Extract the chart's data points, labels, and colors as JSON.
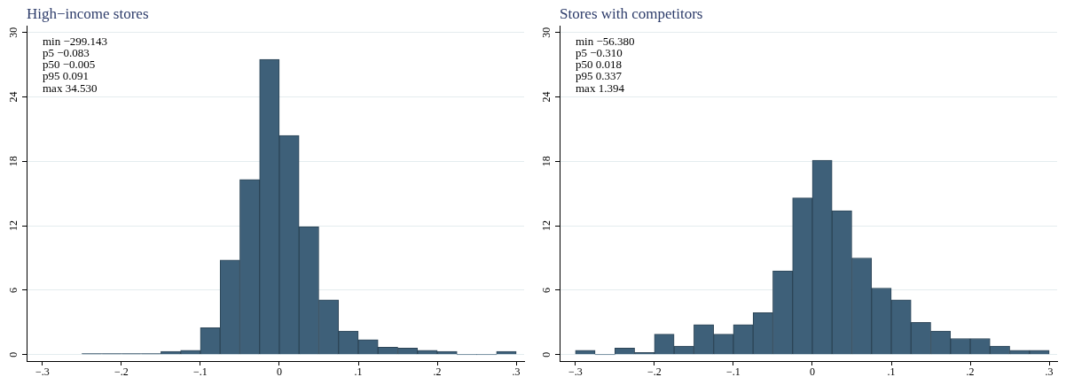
{
  "chart_data": [
    {
      "type": "histogram",
      "title": "High−income stores",
      "bins": [
        -0.25,
        -0.225,
        -0.2,
        -0.175,
        -0.15,
        -0.125,
        -0.1,
        -0.075,
        -0.05,
        -0.025,
        0,
        0.025,
        0.05,
        0.075,
        0.1,
        0.125,
        0.15,
        0.175,
        0.2,
        0.225,
        0.25,
        0.275,
        0.3
      ],
      "values": [
        0.1,
        0.1,
        0.1,
        0.1,
        0.3,
        0.4,
        2.5,
        8.8,
        16.3,
        27.5,
        20.4,
        11.9,
        5.1,
        2.2,
        1.4,
        0.7,
        0.6,
        0.4,
        0.3,
        0,
        0,
        0.3
      ],
      "color": "#3e6079",
      "xlim": [
        -0.32,
        0.31
      ],
      "ylim": [
        -0.6,
        30.6
      ],
      "xticks": [
        {
          "value": -0.3,
          "label": "−.3"
        },
        {
          "value": -0.2,
          "label": "−.2"
        },
        {
          "value": -0.1,
          "label": "−.1"
        },
        0,
        {
          "value": 0.1,
          "label": ".1"
        },
        {
          "value": 0.2,
          "label": ".2"
        },
        {
          "value": 0.3,
          "label": ".3"
        }
      ],
      "yticks": [
        0,
        6,
        12,
        18,
        24,
        30
      ],
      "grid": "y",
      "annotations": [
        "min −299.143",
        "p5 −0.083",
        "p50 −0.005",
        "p95 0.091",
        "max 34.530"
      ]
    },
    {
      "type": "histogram",
      "title": "Stores with competitors",
      "bins": [
        -0.3,
        -0.275,
        -0.25,
        -0.225,
        -0.2,
        -0.175,
        -0.15,
        -0.125,
        -0.1,
        -0.075,
        -0.05,
        -0.025,
        0,
        0.025,
        0.05,
        0.075,
        0.1,
        0.125,
        0.15,
        0.175,
        0.2,
        0.225,
        0.25,
        0.275,
        0.3
      ],
      "values": [
        0.4,
        0,
        0.6,
        0.2,
        1.9,
        0.8,
        2.8,
        1.9,
        2.8,
        3.9,
        7.8,
        14.6,
        18.1,
        13.4,
        9.0,
        6.2,
        5.1,
        3.0,
        2.2,
        1.5,
        1.5,
        0.8,
        0.4,
        0.4
      ],
      "color": "#3e6079",
      "xlim": [
        -0.32,
        0.31
      ],
      "ylim": [
        -0.6,
        30.6
      ],
      "xticks": [
        {
          "value": -0.3,
          "label": "−.3"
        },
        {
          "value": -0.2,
          "label": "−.2"
        },
        {
          "value": -0.1,
          "label": "−.1"
        },
        0,
        {
          "value": 0.1,
          "label": ".1"
        },
        {
          "value": 0.2,
          "label": ".2"
        },
        {
          "value": 0.3,
          "label": ".3"
        }
      ],
      "yticks": [
        0,
        6,
        12,
        18,
        24,
        30
      ],
      "grid": "y",
      "annotations": [
        "min −56.380",
        "p5 −0.310",
        "p50 0.018",
        "p95 0.337",
        "max 1.394"
      ]
    }
  ]
}
